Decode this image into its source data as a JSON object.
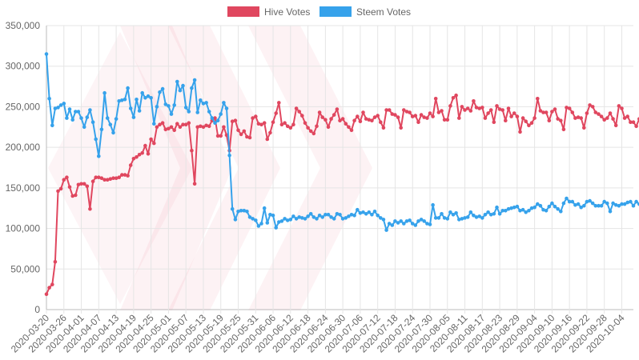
{
  "chart_data": {
    "type": "line",
    "title": "",
    "xlabel": "",
    "ylabel": "",
    "ylim": [
      0,
      350000
    ],
    "y_ticks": [
      0,
      50000,
      100000,
      150000,
      200000,
      250000,
      300000,
      350000
    ],
    "y_tick_labels": [
      "0",
      "50,000",
      "100,000",
      "150,000",
      "200,000",
      "250,000",
      "300,000",
      "350,000"
    ],
    "x_range": [
      "2020-03-20",
      "2020-10-08"
    ],
    "x_tick_labels": [
      "2020-03-20",
      "2020-03-26",
      "2020-04-01",
      "2020-04-07",
      "2020-04-13",
      "2020-04-19",
      "2020-04-25",
      "2020-05-01",
      "2020-05-07",
      "2020-05-13",
      "2020-05-19",
      "2020-05-25",
      "2020-05-31",
      "2020-06-06",
      "2020-06-12",
      "2020-06-18",
      "2020-06-24",
      "2020-06-30",
      "2020-07-06",
      "2020-07-12",
      "2020-07-18",
      "2020-07-24",
      "2020-07-30",
      "2020-08-05",
      "2020-08-11",
      "2020-08-17",
      "2020-08-23",
      "2020-08-29",
      "2020-09-04",
      "2020-09-10",
      "2020-09-16",
      "2020-09-22",
      "2020-09-28",
      "2020-10-04"
    ],
    "grid": true,
    "legend_position": "top",
    "series": [
      {
        "name": "Hive Votes",
        "color": "#e0475f",
        "x_start": "2020-03-20",
        "values": [
          19000,
          27000,
          31000,
          59000,
          146000,
          149000,
          160000,
          163000,
          151000,
          140000,
          141000,
          154000,
          155000,
          155000,
          152000,
          124000,
          158000,
          163000,
          163000,
          162000,
          160000,
          160000,
          161000,
          162000,
          162000,
          163000,
          166000,
          166000,
          165000,
          178000,
          186000,
          188000,
          191000,
          193000,
          202000,
          192000,
          210000,
          205000,
          225000,
          228000,
          230000,
          222000,
          223000,
          225000,
          221000,
          229000,
          225000,
          228000,
          228000,
          230000,
          196000,
          155000,
          225000,
          226000,
          225000,
          227000,
          226000,
          233000,
          236000,
          214000,
          214000,
          225000,
          215000,
          196000,
          232000,
          233000,
          221000,
          216000,
          220000,
          213000,
          212000,
          236000,
          238000,
          229000,
          228000,
          230000,
          210000,
          218000,
          231000,
          242000,
          255000,
          228000,
          230000,
          226000,
          224000,
          228000,
          248000,
          244000,
          239000,
          230000,
          224000,
          220000,
          217000,
          226000,
          243000,
          237000,
          234000,
          225000,
          235000,
          240000,
          247000,
          233000,
          235000,
          229000,
          225000,
          221000,
          233000,
          238000,
          232000,
          243000,
          235000,
          234000,
          233000,
          237000,
          239000,
          231000,
          224000,
          246000,
          246000,
          241000,
          240000,
          237000,
          224000,
          246000,
          244000,
          243000,
          238000,
          239000,
          231000,
          240000,
          237000,
          236000,
          242000,
          238000,
          260000,
          243000,
          245000,
          234000,
          234000,
          251000,
          261000,
          264000,
          236000,
          250000,
          246000,
          248000,
          245000,
          257000,
          249000,
          248000,
          249000,
          236000,
          242000,
          246000,
          231000,
          251000,
          247000,
          246000,
          233000,
          248000,
          238000,
          242000,
          238000,
          219000,
          236000,
          232000,
          227000,
          230000,
          236000,
          260000,
          245000,
          243000,
          243000,
          233000,
          244000,
          247000,
          235000,
          233000,
          222000,
          249000,
          248000,
          243000,
          236000,
          237000,
          236000,
          224000,
          242000,
          252000,
          250000,
          243000,
          241000,
          238000,
          234000,
          236000,
          242000,
          235000,
          227000,
          251000,
          248000,
          236000,
          238000,
          231000,
          231000,
          226000,
          235000,
          245000,
          232000,
          228000,
          212000,
          228000,
          234000,
          231000,
          245000,
          230000,
          221000,
          220000,
          206000,
          222000
        ]
      },
      {
        "name": "Steem Votes",
        "color": "#36a2eb",
        "x_start": "2020-03-20",
        "values": [
          315000,
          260000,
          227000,
          248000,
          249000,
          252000,
          254000,
          236000,
          247000,
          234000,
          244000,
          244000,
          236000,
          225000,
          237000,
          246000,
          231000,
          210000,
          189000,
          222000,
          267000,
          236000,
          228000,
          218000,
          235000,
          257000,
          258000,
          259000,
          273000,
          248000,
          237000,
          259000,
          245000,
          267000,
          261000,
          263000,
          261000,
          229000,
          250000,
          268000,
          272000,
          253000,
          251000,
          241000,
          252000,
          281000,
          270000,
          276000,
          249000,
          244000,
          273000,
          283000,
          243000,
          258000,
          254000,
          255000,
          244000,
          236000,
          230000,
          233000,
          241000,
          255000,
          248000,
          190000,
          124000,
          111000,
          121000,
          122000,
          122000,
          121000,
          114000,
          112000,
          110000,
          103000,
          106000,
          125000,
          107000,
          117000,
          116000,
          101000,
          108000,
          109000,
          112000,
          110000,
          111000,
          115000,
          112000,
          114000,
          113000,
          112000,
          115000,
          118000,
          114000,
          112000,
          116000,
          114000,
          117000,
          117000,
          114000,
          112000,
          118000,
          117000,
          112000,
          113000,
          115000,
          117000,
          116000,
          123000,
          119000,
          120000,
          118000,
          120000,
          117000,
          121000,
          116000,
          113000,
          111000,
          98000,
          106000,
          104000,
          109000,
          107000,
          109000,
          106000,
          109000,
          110000,
          106000,
          104000,
          109000,
          111000,
          109000,
          106000,
          105000,
          129000,
          113000,
          113000,
          118000,
          113000,
          112000,
          120000,
          117000,
          119000,
          111000,
          112000,
          113000,
          114000,
          120000,
          116000,
          114000,
          115000,
          113000,
          117000,
          120000,
          117000,
          118000,
          126000,
          118000,
          122000,
          122000,
          124000,
          125000,
          126000,
          127000,
          122000,
          123000,
          120000,
          122000,
          125000,
          126000,
          130000,
          128000,
          123000,
          122000,
          127000,
          131000,
          127000,
          124000,
          121000,
          131000,
          137000,
          133000,
          133000,
          129000,
          130000,
          126000,
          128000,
          133000,
          134000,
          131000,
          128000,
          128000,
          128000,
          133000,
          131000,
          121000,
          131000,
          129000,
          128000,
          130000,
          130000,
          132000,
          133000,
          128000,
          133000,
          130000,
          131000,
          128000,
          129000,
          126000,
          127000,
          131000,
          130000,
          128000,
          128000,
          125000,
          129000,
          130000,
          129000,
          124000,
          128000
        ]
      }
    ]
  }
}
